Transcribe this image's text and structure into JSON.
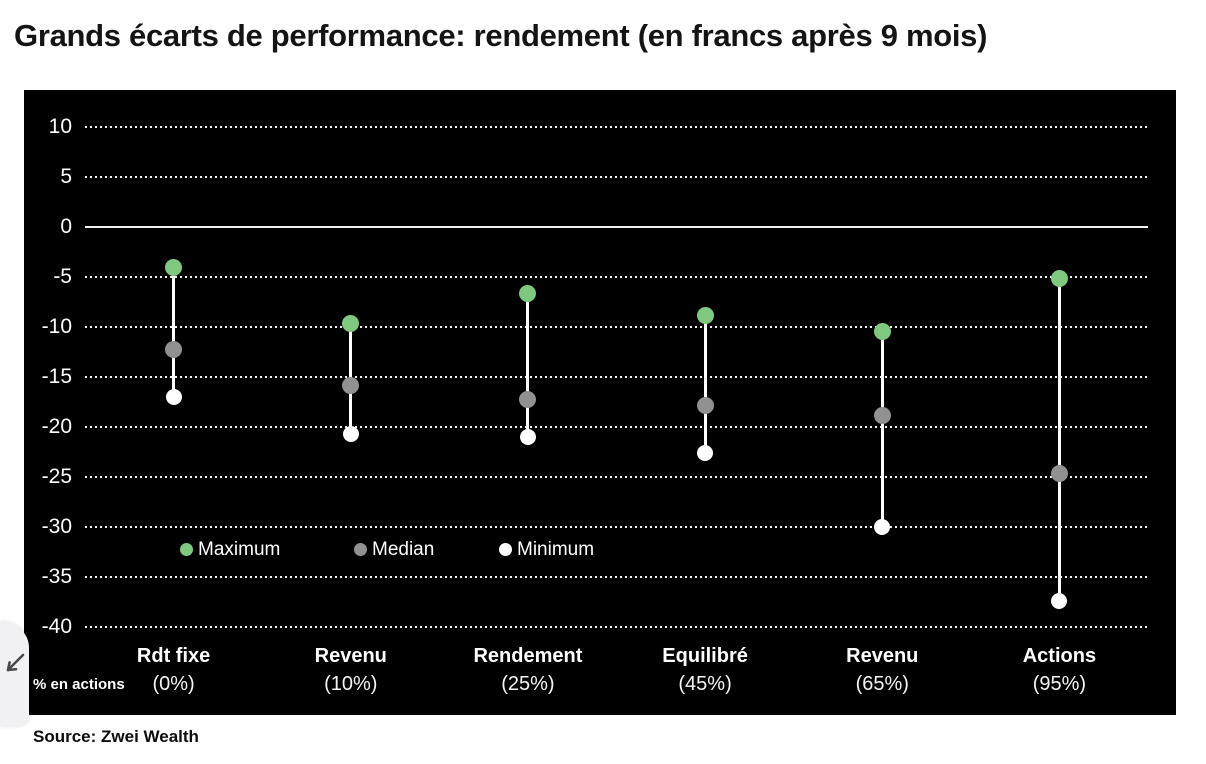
{
  "page": {
    "title": "Grands écarts de performance: rendement (en francs après 9 mois)",
    "source": "Source: Zwei Wealth"
  },
  "chart_data": {
    "type": "scatter",
    "subtype": "vertical-range-dumbbell",
    "title": "Grands écarts de performance: rendement (en francs après 9 mois)",
    "categories": [
      "Rdt fixe",
      "Revenu",
      "Rendement",
      "Equilibré",
      "Revenu",
      "Actions"
    ],
    "category_sublabels": [
      "(0%)",
      "(10%)",
      "(25%)",
      "(45%)",
      "(65%)",
      "(95%)"
    ],
    "xlabel": "% en actions",
    "ylabel": "",
    "ylim": [
      -40,
      10
    ],
    "yticks": [
      10,
      5,
      0,
      -5,
      -10,
      -15,
      -20,
      -25,
      -30,
      -35,
      -40
    ],
    "grid": "dotted horizontal white on black, solid line at 0",
    "legend_position": "inside bottom-left",
    "plot_background": "#000000",
    "series": [
      {
        "name": "Maximum",
        "color": "#7fc87f",
        "values": [
          -4.0,
          -9.6,
          -6.6,
          -8.8,
          -10.4,
          -5.1
        ]
      },
      {
        "name": "Median",
        "color": "#919191",
        "values": [
          -12.2,
          -15.8,
          -17.2,
          -17.8,
          -18.8,
          -24.6
        ]
      },
      {
        "name": "Minimum",
        "color": "#ffffff",
        "values": [
          -17.0,
          -20.7,
          -21.0,
          -22.6,
          -30.0,
          -37.4
        ]
      }
    ]
  }
}
